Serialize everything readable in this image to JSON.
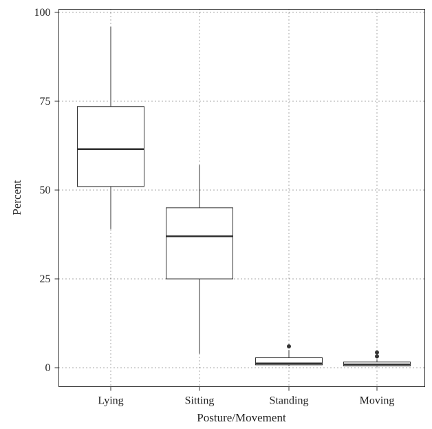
{
  "chart_data": {
    "type": "boxplot",
    "xlabel": "Posture/Movement",
    "ylabel": "Percent",
    "ylim": [
      -4,
      102
    ],
    "yticks": [
      0,
      25,
      50,
      75,
      100
    ],
    "grid": true,
    "categories": [
      "Lying",
      "Sitting",
      "Standing",
      "Moving"
    ],
    "boxes": [
      {
        "category": "Lying",
        "min": 39,
        "q1": 51,
        "median": 61.5,
        "q3": 73.5,
        "max": 96,
        "outliers": []
      },
      {
        "category": "Sitting",
        "min": 4,
        "q1": 25,
        "median": 37,
        "q3": 45,
        "max": 57,
        "outliers": []
      },
      {
        "category": "Standing",
        "min": 0.5,
        "q1": 0.8,
        "median": 1.2,
        "q3": 2.8,
        "max": 5,
        "outliers": [
          6
        ]
      },
      {
        "category": "Moving",
        "min": 0.3,
        "q1": 0.5,
        "median": 0.9,
        "q3": 1.6,
        "max": 2.4,
        "outliers": [
          3.2,
          4.3
        ]
      }
    ]
  }
}
